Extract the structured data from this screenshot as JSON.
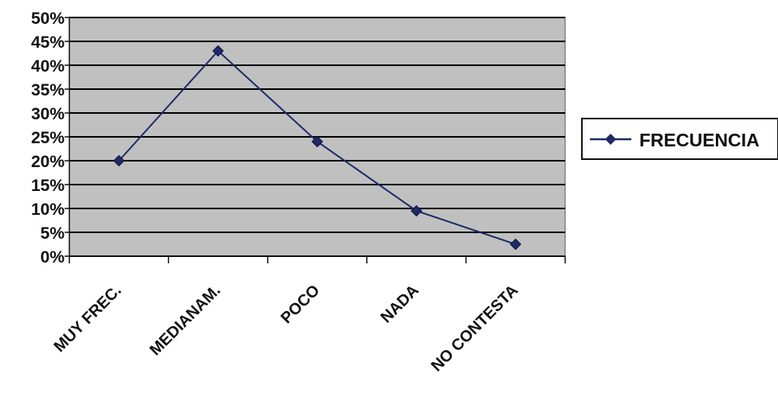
{
  "chart_data": {
    "type": "line",
    "categories": [
      "MUY FREC.",
      "MEDIANAM.",
      "POCO",
      "NADA",
      "NO CONTESTA"
    ],
    "series": [
      {
        "name": "FRECUENCIA",
        "values": [
          20,
          43,
          24,
          9.5,
          2.5
        ]
      }
    ],
    "y_ticks": [
      "0%",
      "5%",
      "10%",
      "15%",
      "20%",
      "25%",
      "30%",
      "35%",
      "40%",
      "45%",
      "50%"
    ],
    "ylim": [
      0,
      50
    ],
    "grid": true,
    "legend_position": "right",
    "colors": {
      "plot_background": "#c0c0c0",
      "gridline": "#000000",
      "series_line": "#1f2a66",
      "marker": "#1f2a66"
    }
  }
}
